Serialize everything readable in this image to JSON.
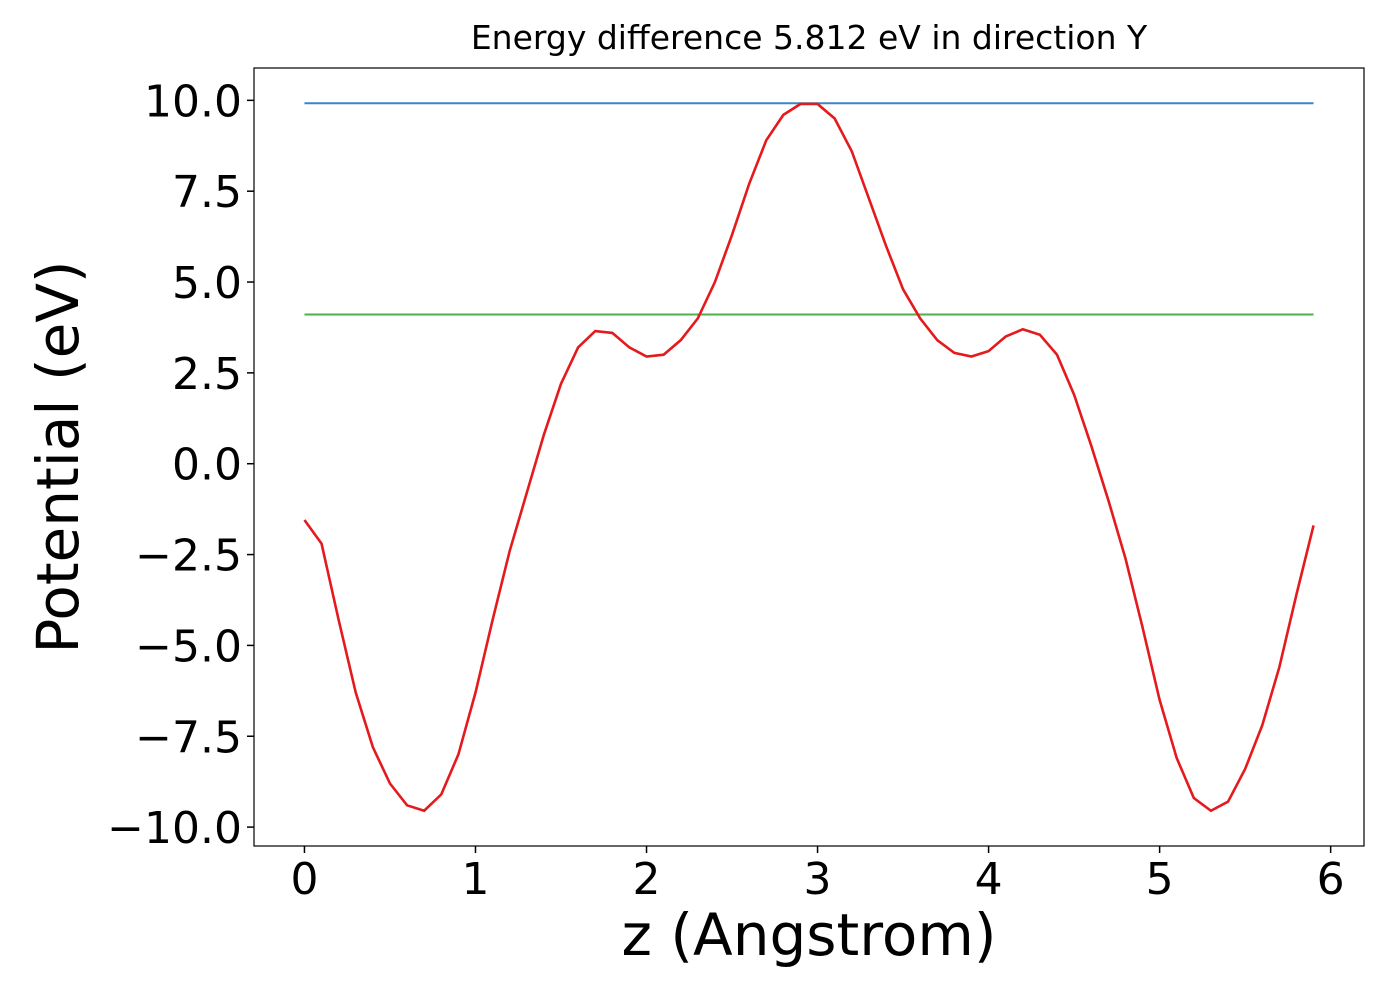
{
  "chart_data": {
    "type": "line",
    "title": "Energy difference 5.812 eV in direction Y",
    "x_label": "z (Angstrom)",
    "y_label": "Potential (eV)",
    "xlim": [
      -0.295,
      6.195
    ],
    "ylim": [
      -10.52,
      10.89
    ],
    "xticks": [
      0,
      1,
      2,
      3,
      4,
      5,
      6
    ],
    "yticks": [
      {
        "value": -10,
        "label": "−10.0"
      },
      {
        "value": -7.5,
        "label": "−7.5"
      },
      {
        "value": -5,
        "label": "−5.0"
      },
      {
        "value": -2.5,
        "label": "−2.5"
      },
      {
        "value": 0,
        "label": "0.0"
      },
      {
        "value": 2.5,
        "label": "2.5"
      },
      {
        "value": 5,
        "label": "5.0"
      },
      {
        "value": 7.5,
        "label": "7.5"
      },
      {
        "value": 10,
        "label": "10.0"
      }
    ],
    "series": [
      {
        "color": "#3a85c6",
        "x": [
          0,
          5.9
        ],
        "values": [
          9.92,
          9.92
        ]
      },
      {
        "color": "#4daf4a",
        "x": [
          0,
          5.9
        ],
        "values": [
          4.108,
          4.108
        ]
      },
      {
        "color": "#e41a1c",
        "x": [
          0,
          0.1,
          0.2,
          0.3,
          0.4,
          0.5,
          0.6,
          0.7,
          0.8,
          0.9,
          1.0,
          1.1,
          1.2,
          1.3,
          1.4,
          1.5,
          1.6,
          1.7,
          1.8,
          1.9,
          2.0,
          2.1,
          2.2,
          2.3,
          2.4,
          2.5,
          2.6,
          2.7,
          2.8,
          2.9,
          3.0,
          3.1,
          3.2,
          3.3,
          3.4,
          3.5,
          3.6,
          3.7,
          3.8,
          3.9,
          4.0,
          4.1,
          4.2,
          4.3,
          4.4,
          4.5,
          4.6,
          4.7,
          4.8,
          4.9,
          5.0,
          5.1,
          5.2,
          5.3,
          5.4,
          5.5,
          5.6,
          5.7,
          5.8,
          5.9
        ],
        "values": [
          -1.55,
          -2.2,
          -4.3,
          -6.3,
          -7.8,
          -8.8,
          -9.4,
          -9.55,
          -9.1,
          -8.0,
          -6.3,
          -4.3,
          -2.4,
          -0.8,
          0.8,
          2.2,
          3.2,
          3.65,
          3.6,
          3.2,
          2.95,
          3.0,
          3.4,
          4.0,
          5.0,
          6.3,
          7.7,
          8.9,
          9.6,
          9.9,
          9.9,
          9.5,
          8.6,
          7.3,
          6.0,
          4.8,
          4.0,
          3.4,
          3.05,
          2.95,
          3.1,
          3.5,
          3.7,
          3.55,
          3.0,
          1.9,
          0.5,
          -1.0,
          -2.6,
          -4.5,
          -6.5,
          -8.1,
          -9.2,
          -9.55,
          -9.3,
          -8.4,
          -7.2,
          -5.6,
          -3.6,
          -1.7
        ]
      }
    ]
  }
}
